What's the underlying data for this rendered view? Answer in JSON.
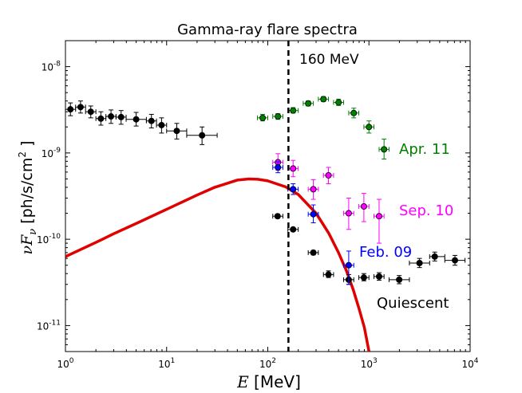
{
  "chart_data": {
    "type": "scatter",
    "title": "Gamma-ray flare spectra",
    "xlabel": "E [MeV]",
    "ylabel": "νFν [ph/s/cm²]",
    "xlabel_italic": "E",
    "xlabel_rest": " [MeV]",
    "ylabel_parts": {
      "nu": "ν",
      "F": "F",
      "sub": "ν",
      "rest": " [ph/s/cm",
      "sup": "2",
      "close": " ]"
    },
    "xscale": "log",
    "yscale": "log",
    "xlim": [
      1,
      10000
    ],
    "ylim": [
      5e-12,
      2e-08
    ],
    "x_ticks": [
      {
        "value": 1,
        "base": "10",
        "exp": "0"
      },
      {
        "value": 10,
        "base": "10",
        "exp": "1"
      },
      {
        "value": 100,
        "base": "10",
        "exp": "2"
      },
      {
        "value": 1000,
        "base": "10",
        "exp": "3"
      },
      {
        "value": 10000,
        "base": "10",
        "exp": "4"
      }
    ],
    "y_ticks": [
      {
        "value": 1e-08,
        "base": "10",
        "exp": "-8"
      },
      {
        "value": 1e-09,
        "base": "10",
        "exp": "-9"
      },
      {
        "value": 1e-10,
        "base": "10",
        "exp": "-10"
      },
      {
        "value": 1e-11,
        "base": "10",
        "exp": "-11"
      }
    ],
    "vline": {
      "x": 160,
      "label": "160 MeV"
    },
    "series": [
      {
        "name": "Quiescent",
        "color": "#000000",
        "points": [
          {
            "x": 1.12,
            "y": 3.2e-09,
            "xlo": 1.0,
            "xhi": 1.26,
            "ylo": 2.7e-09,
            "yhi": 3.8e-09
          },
          {
            "x": 1.41,
            "y": 3.4e-09,
            "xlo": 1.26,
            "xhi": 1.58,
            "ylo": 2.9e-09,
            "yhi": 4e-09
          },
          {
            "x": 1.78,
            "y": 3e-09,
            "xlo": 1.58,
            "xhi": 2.0,
            "ylo": 2.55e-09,
            "yhi": 3.5e-09
          },
          {
            "x": 2.24,
            "y": 2.5e-09,
            "xlo": 2.0,
            "xhi": 2.51,
            "ylo": 2.1e-09,
            "yhi": 3e-09
          },
          {
            "x": 2.82,
            "y": 2.65e-09,
            "xlo": 2.51,
            "xhi": 3.16,
            "ylo": 2.2e-09,
            "yhi": 3.15e-09
          },
          {
            "x": 3.55,
            "y": 2.6e-09,
            "xlo": 3.16,
            "xhi": 3.98,
            "ylo": 2.15e-09,
            "yhi": 3.1e-09
          },
          {
            "x": 5.0,
            "y": 2.45e-09,
            "xlo": 3.98,
            "xhi": 6.31,
            "ylo": 2.05e-09,
            "yhi": 2.95e-09
          },
          {
            "x": 7.08,
            "y": 2.35e-09,
            "xlo": 6.31,
            "xhi": 7.94,
            "ylo": 1.95e-09,
            "yhi": 2.8e-09
          },
          {
            "x": 8.91,
            "y": 2.1e-09,
            "xlo": 7.94,
            "xhi": 10.0,
            "ylo": 1.7e-09,
            "yhi": 2.55e-09
          },
          {
            "x": 12.6,
            "y": 1.8e-09,
            "xlo": 10.0,
            "xhi": 15.8,
            "ylo": 1.45e-09,
            "yhi": 2.2e-09
          },
          {
            "x": 22.4,
            "y": 1.6e-09,
            "xlo": 15.8,
            "xhi": 31.6,
            "ylo": 1.25e-09,
            "yhi": 2e-09
          },
          {
            "x": 125,
            "y": 1.85e-10,
            "xlo": 112,
            "xhi": 141,
            "ylo": 1.75e-10,
            "yhi": 1.95e-10
          },
          {
            "x": 178,
            "y": 1.3e-10,
            "xlo": 158,
            "xhi": 200,
            "ylo": 1.25e-10,
            "yhi": 1.35e-10
          },
          {
            "x": 282,
            "y": 7e-11,
            "xlo": 251,
            "xhi": 316,
            "ylo": 6.6e-11,
            "yhi": 7.4e-11
          },
          {
            "x": 398,
            "y": 3.9e-11,
            "xlo": 355,
            "xhi": 447,
            "ylo": 3.6e-11,
            "yhi": 4.3e-11
          },
          {
            "x": 631,
            "y": 3.4e-11,
            "xlo": 562,
            "xhi": 708,
            "ylo": 3e-11,
            "yhi": 3.9e-11
          },
          {
            "x": 891,
            "y": 3.6e-11,
            "xlo": 794,
            "xhi": 1000,
            "ylo": 3.3e-11,
            "yhi": 4e-11
          },
          {
            "x": 1260,
            "y": 3.7e-11,
            "xlo": 1120,
            "xhi": 1410,
            "ylo": 3.35e-11,
            "yhi": 4.1e-11
          },
          {
            "x": 1990,
            "y": 3.4e-11,
            "xlo": 1580,
            "xhi": 2510,
            "ylo": 3.05e-11,
            "yhi": 3.8e-11
          },
          {
            "x": 3160,
            "y": 5.3e-11,
            "xlo": 2510,
            "xhi": 3980,
            "ylo": 4.7e-11,
            "yhi": 6e-11
          },
          {
            "x": 4470,
            "y": 6.3e-11,
            "xlo": 3980,
            "xhi": 5620,
            "ylo": 5.6e-11,
            "yhi": 7.1e-11
          },
          {
            "x": 7080,
            "y": 5.7e-11,
            "xlo": 5620,
            "xhi": 8910,
            "ylo": 5e-11,
            "yhi": 6.5e-11
          }
        ]
      },
      {
        "name": "Apr. 11",
        "color": "#008000",
        "points": [
          {
            "x": 89,
            "y": 2.55e-09,
            "xlo": 79,
            "xhi": 100,
            "ylo": 2.35e-09,
            "yhi": 2.8e-09
          },
          {
            "x": 126,
            "y": 2.65e-09,
            "xlo": 112,
            "xhi": 141,
            "ylo": 2.45e-09,
            "yhi": 2.85e-09
          },
          {
            "x": 178,
            "y": 3.1e-09,
            "xlo": 158,
            "xhi": 200,
            "ylo": 2.9e-09,
            "yhi": 3.35e-09
          },
          {
            "x": 251,
            "y": 3.75e-09,
            "xlo": 224,
            "xhi": 282,
            "ylo": 3.5e-09,
            "yhi": 4e-09
          },
          {
            "x": 355,
            "y": 4.2e-09,
            "xlo": 316,
            "xhi": 398,
            "ylo": 3.95e-09,
            "yhi": 4.5e-09
          },
          {
            "x": 501,
            "y": 3.85e-09,
            "xlo": 447,
            "xhi": 562,
            "ylo": 3.55e-09,
            "yhi": 4.2e-09
          },
          {
            "x": 708,
            "y": 2.9e-09,
            "xlo": 631,
            "xhi": 794,
            "ylo": 2.55e-09,
            "yhi": 3.3e-09
          },
          {
            "x": 1000,
            "y": 2e-09,
            "xlo": 891,
            "xhi": 1120,
            "ylo": 1.7e-09,
            "yhi": 2.35e-09
          },
          {
            "x": 1410,
            "y": 1.1e-09,
            "xlo": 1260,
            "xhi": 1580,
            "ylo": 8.5e-10,
            "yhi": 1.45e-09
          }
        ]
      },
      {
        "name": "Sep. 10",
        "color": "#ff00ff",
        "points": [
          {
            "x": 126,
            "y": 7.8e-10,
            "xlo": 112,
            "xhi": 141,
            "ylo": 6.3e-10,
            "yhi": 9.8e-10
          },
          {
            "x": 178,
            "y": 6.6e-10,
            "xlo": 158,
            "xhi": 200,
            "ylo": 5.3e-10,
            "yhi": 8.2e-10
          },
          {
            "x": 282,
            "y": 3.8e-10,
            "xlo": 251,
            "xhi": 316,
            "ylo": 2.9e-10,
            "yhi": 4.9e-10
          },
          {
            "x": 398,
            "y": 5.5e-10,
            "xlo": 355,
            "xhi": 447,
            "ylo": 4.4e-10,
            "yhi": 6.8e-10
          },
          {
            "x": 631,
            "y": 2e-10,
            "xlo": 562,
            "xhi": 708,
            "ylo": 1.3e-10,
            "yhi": 3e-10
          },
          {
            "x": 891,
            "y": 2.4e-10,
            "xlo": 794,
            "xhi": 1000,
            "ylo": 1.6e-10,
            "yhi": 3.4e-10
          },
          {
            "x": 1260,
            "y": 1.85e-10,
            "xlo": 1120,
            "xhi": 1410,
            "ylo": 9e-11,
            "yhi": 2.9e-10
          }
        ]
      },
      {
        "name": "Feb. 09",
        "color": "#0000ff",
        "points": [
          {
            "x": 126,
            "y": 6.8e-10,
            "xlo": 112,
            "xhi": 141,
            "ylo": 5.9e-10,
            "yhi": 7.9e-10
          },
          {
            "x": 178,
            "y": 3.8e-10,
            "xlo": 158,
            "xhi": 200,
            "ylo": 3.3e-10,
            "yhi": 4.4e-10
          },
          {
            "x": 282,
            "y": 1.95e-10,
            "xlo": 251,
            "xhi": 316,
            "ylo": 1.55e-10,
            "yhi": 2.5e-10
          },
          {
            "x": 631,
            "y": 5e-11,
            "xlo": 562,
            "xhi": 708,
            "ylo": 3e-11,
            "yhi": 7.3e-11
          }
        ]
      }
    ],
    "curve": {
      "name": "model",
      "color": "#e00000",
      "points": [
        {
          "x": 1,
          "y": 6.3e-11
        },
        {
          "x": 2,
          "y": 9.2e-11
        },
        {
          "x": 3,
          "y": 1.16e-10
        },
        {
          "x": 5,
          "y": 1.52e-10
        },
        {
          "x": 10,
          "y": 2.22e-10
        },
        {
          "x": 20,
          "y": 3.25e-10
        },
        {
          "x": 30,
          "y": 4e-10
        },
        {
          "x": 50,
          "y": 4.85e-10
        },
        {
          "x": 65,
          "y": 5e-10
        },
        {
          "x": 80,
          "y": 4.95e-10
        },
        {
          "x": 100,
          "y": 4.75e-10
        },
        {
          "x": 150,
          "y": 4.05e-10
        },
        {
          "x": 200,
          "y": 3.3e-10
        },
        {
          "x": 300,
          "y": 2e-10
        },
        {
          "x": 400,
          "y": 1.18e-10
        },
        {
          "x": 500,
          "y": 7e-11
        },
        {
          "x": 600,
          "y": 4.3e-11
        },
        {
          "x": 700,
          "y": 2.6e-11
        },
        {
          "x": 800,
          "y": 1.55e-11
        },
        {
          "x": 900,
          "y": 9.5e-12
        },
        {
          "x": 1000,
          "y": 5e-12
        }
      ]
    }
  }
}
